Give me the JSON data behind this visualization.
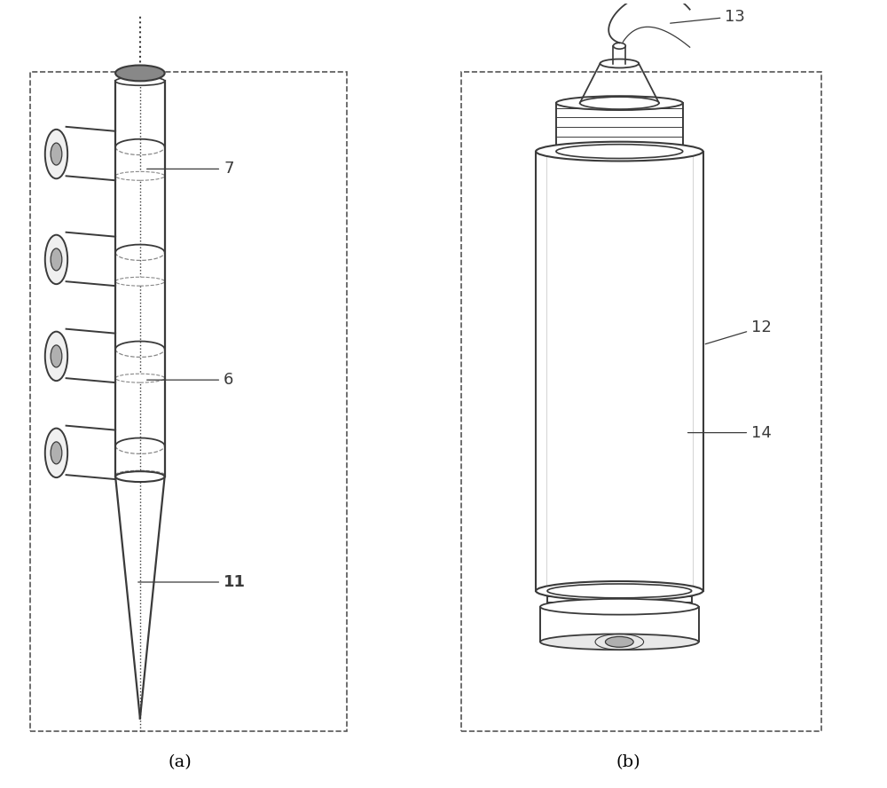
{
  "background_color": "#ffffff",
  "figure_size": [
    10.0,
    8.88
  ],
  "dpi": 100,
  "label_a": "(a)",
  "label_b": "(b)",
  "line_color": "#3a3a3a",
  "dash_color": "#555555",
  "annotation_color": "#3a3a3a"
}
